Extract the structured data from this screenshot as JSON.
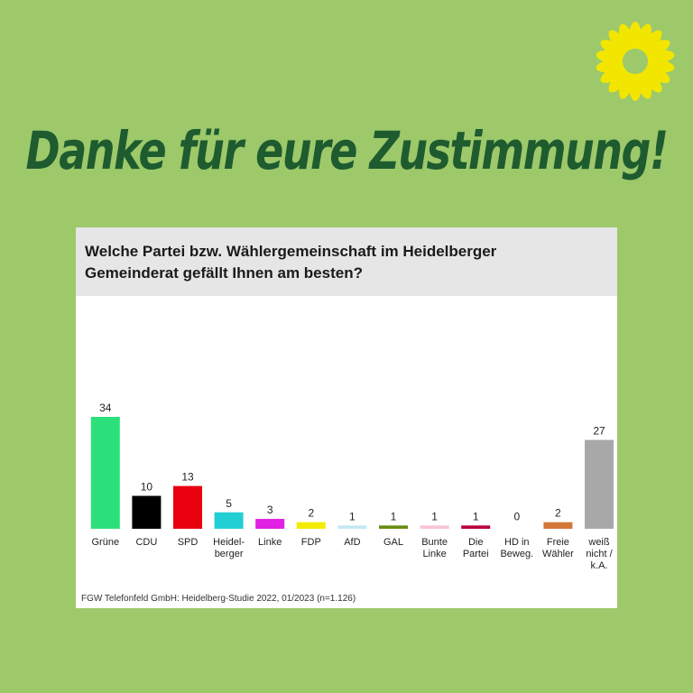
{
  "headline": "Danke für eure Zustimmung!",
  "colors": {
    "background": "#9dc96a",
    "headline": "#1e5b2f",
    "sunflower": "#f2e600"
  },
  "logo": {
    "icon": "sunflower-icon"
  },
  "chart_data": {
    "type": "bar",
    "title": "Welche Partei bzw. Wählergemeinschaft im Heidelberger Gemeinderat gefällt Ihnen am besten?",
    "title_lines": [
      "Welche Partei bzw. Wählergemeinschaft im Heidelberger",
      "Gemeinderat gefällt Ihnen am besten?"
    ],
    "source": "FGW Telefonfeld GmbH: Heidelberg-Studie 2022, 01/2023 (n=1.126)",
    "categories": [
      [
        "Grüne"
      ],
      [
        "CDU"
      ],
      [
        "SPD"
      ],
      [
        "Heidel-",
        "berger"
      ],
      [
        "Linke"
      ],
      [
        "FDP"
      ],
      [
        "AfD"
      ],
      [
        "GAL"
      ],
      [
        "Bunte",
        "Linke"
      ],
      [
        "Die",
        "Partei"
      ],
      [
        "HD in",
        "Beweg."
      ],
      [
        "Freie",
        "Wähler"
      ],
      [
        "weiß",
        "nicht /",
        "k.A."
      ]
    ],
    "values": [
      34,
      10,
      13,
      5,
      3,
      2,
      1,
      1,
      1,
      1,
      0,
      2,
      27
    ],
    "bar_colors": [
      "#2be07a",
      "#000000",
      "#e8000f",
      "#22cfd4",
      "#e021e3",
      "#f2ec00",
      "#c4e8f5",
      "#6b8c14",
      "#f7c4d4",
      "#b8003c",
      "#cccccc",
      "#d4783a",
      "#a8a8a8"
    ],
    "ylim": [
      0,
      34
    ],
    "xlabel": "",
    "ylabel": "",
    "grid": false,
    "legend": "none"
  }
}
